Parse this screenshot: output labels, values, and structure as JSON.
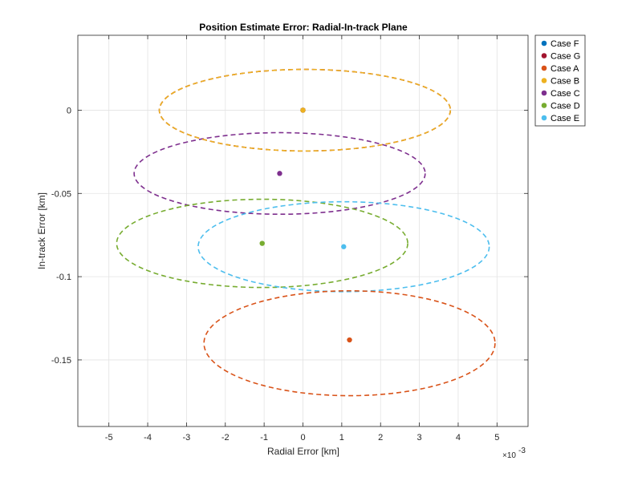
{
  "chart_data": {
    "type": "scatter",
    "title": "Position Estimate Error: Radial-In-track Plane",
    "xlabel": "Radial Error [km]",
    "ylabel": "In-track Error [km]",
    "x_exponent_label": "×10",
    "x_exponent_power": "-3",
    "xlim": [
      -5.8,
      5.8
    ],
    "ylim": [
      -0.19,
      0.045
    ],
    "x_ticks": [
      -5,
      -4,
      -3,
      -2,
      -1,
      0,
      1,
      2,
      3,
      4,
      5
    ],
    "x_tick_labels": [
      "-5",
      "-4",
      "-3",
      "-2",
      "-1",
      "0",
      "1",
      "2",
      "3",
      "4",
      "5"
    ],
    "y_ticks": [
      0,
      -0.05,
      -0.1,
      -0.15
    ],
    "y_tick_labels": [
      "0",
      "-0.05",
      "-0.1",
      "-0.15"
    ],
    "grid": true,
    "legend_position": "outside-top-right",
    "series": [
      {
        "name": "Case F",
        "color": "#0072BD",
        "center": [
          0.0,
          0.0
        ],
        "ellipse": null
      },
      {
        "name": "Case G",
        "color": "#A2142F",
        "center": [
          0.0,
          0.0
        ],
        "ellipse": {
          "cx": 0.05,
          "cy": 0.0,
          "rx": 3.75,
          "ry": 0.0245
        }
      },
      {
        "name": "Case A",
        "color": "#D95319",
        "center": [
          1.2,
          -0.138
        ],
        "ellipse": {
          "cx": 1.2,
          "cy": -0.14,
          "rx": 3.75,
          "ry": 0.0315
        }
      },
      {
        "name": "Case B",
        "color": "#EDB120",
        "center": [
          0.0,
          0.0
        ],
        "ellipse": {
          "cx": 0.05,
          "cy": 0.0,
          "rx": 3.75,
          "ry": 0.0245
        }
      },
      {
        "name": "Case C",
        "color": "#7E2F8E",
        "center": [
          -0.6,
          -0.038
        ],
        "ellipse": {
          "cx": -0.6,
          "cy": -0.038,
          "rx": 3.75,
          "ry": 0.0245
        }
      },
      {
        "name": "Case D",
        "color": "#77AC30",
        "center": [
          -1.05,
          -0.08
        ],
        "ellipse": {
          "cx": -1.05,
          "cy": -0.08,
          "rx": 3.75,
          "ry": 0.0265
        }
      },
      {
        "name": "Case E",
        "color": "#4DBEEE",
        "center": [
          1.05,
          -0.082
        ],
        "ellipse": {
          "cx": 1.05,
          "cy": -0.082,
          "rx": 3.75,
          "ry": 0.027
        }
      }
    ]
  }
}
